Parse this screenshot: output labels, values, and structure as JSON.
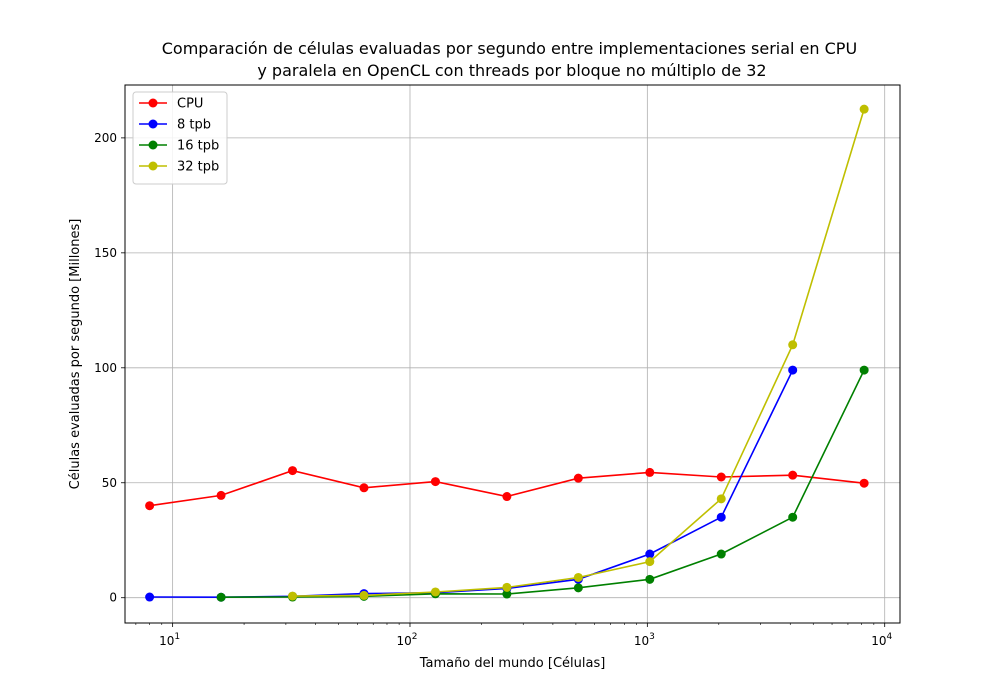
{
  "chart_data": {
    "type": "line",
    "title": "Comparación de células evaluadas por segundo entre implementaciones serial en CPU\ny paralela en OpenCL con threads por bloque no múltiplo de 32",
    "xlabel": "Tamaño del mundo [Células]",
    "ylabel": "Células evaluadas por segundo [Millones]",
    "xscale": "log",
    "xlim": [
      6.3,
      11600
    ],
    "ylim": [
      -11,
      223
    ],
    "grid": true,
    "legend_position": "top-left",
    "x_ticks": [
      {
        "base": "10",
        "exp": "1"
      },
      {
        "base": "10",
        "exp": "2"
      },
      {
        "base": "10",
        "exp": "3"
      },
      {
        "base": "10",
        "exp": "4"
      }
    ],
    "y_ticks": [
      "0",
      "50",
      "100",
      "150",
      "200"
    ],
    "series": [
      {
        "name": "CPU",
        "color": "#ff0000",
        "x": [
          8,
          16,
          32,
          64,
          128,
          256,
          512,
          1024,
          2048,
          4096,
          8192
        ],
        "y": [
          40,
          44.5,
          55.3,
          47.8,
          50.5,
          44,
          52,
          54.5,
          52.5,
          53.3,
          49.8
        ]
      },
      {
        "name": "8 tpb",
        "color": "#0000ff",
        "x": [
          8,
          16,
          32,
          64,
          128,
          256,
          512,
          1024,
          2048,
          4096
        ],
        "y": [
          0.3,
          0.2,
          0.6,
          1.8,
          2.2,
          4,
          8,
          19,
          35,
          99
        ]
      },
      {
        "name": "16 tpb",
        "color": "#008000",
        "x": [
          16,
          32,
          64,
          128,
          256,
          512,
          1024,
          2048,
          4096,
          8192
        ],
        "y": [
          0.2,
          0.3,
          0.6,
          1.7,
          1.6,
          4.3,
          8,
          19,
          35,
          99
        ]
      },
      {
        "name": "32 tpb",
        "color": "#bfbf00",
        "x": [
          32,
          64,
          128,
          256,
          512,
          1024,
          2048,
          4096,
          8192
        ],
        "y": [
          0.7,
          1,
          2.5,
          4.5,
          8.8,
          15.7,
          43,
          110,
          212.5
        ]
      }
    ]
  }
}
